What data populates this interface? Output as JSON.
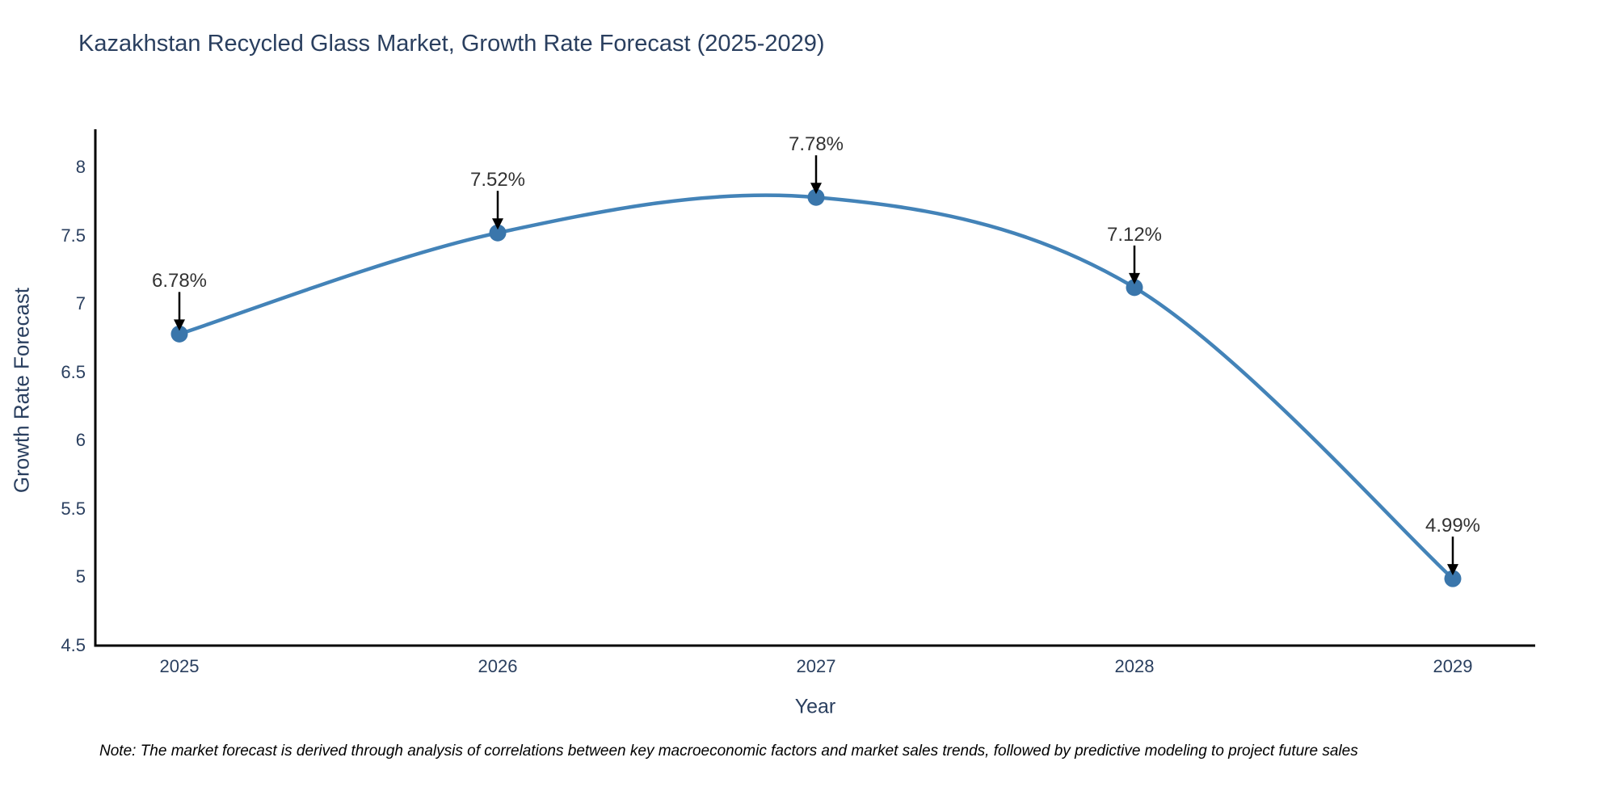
{
  "title": "Kazakhstan Recycled Glass Market, Growth Rate Forecast (2025-2029)",
  "note": "Note: The market forecast is derived through analysis of correlations between key macroeconomic factors and market sales trends, followed by predictive modeling to project future sales",
  "chart_data": {
    "type": "line",
    "title": "Kazakhstan Recycled Glass Market, Growth Rate Forecast (2025-2029)",
    "x": [
      "2025",
      "2026",
      "2027",
      "2028",
      "2029"
    ],
    "series": [
      {
        "name": "Growth Rate Forecast",
        "values": [
          6.78,
          7.52,
          7.78,
          7.12,
          4.99
        ]
      }
    ],
    "point_labels": [
      "6.78%",
      "7.52%",
      "7.78%",
      "7.12%",
      "4.99%"
    ],
    "xlabel": "Year",
    "ylabel": "Growth Rate Forecast",
    "ylim": [
      4.5,
      8
    ],
    "yticks": [
      4.5,
      5,
      5.5,
      6,
      6.5,
      7,
      7.5,
      8
    ],
    "line_shape": "spline",
    "grid": false,
    "legend_position": "none",
    "annotations_arrow": "down",
    "colors": {
      "line": "#4383b8",
      "marker": "#3a76ab",
      "axis_line": "#000000",
      "tick_text": "#2a3f5f",
      "title_text": "#2a3f5f",
      "annotation_text": "#333333",
      "arrow": "#000000",
      "background": "#ffffff"
    }
  }
}
